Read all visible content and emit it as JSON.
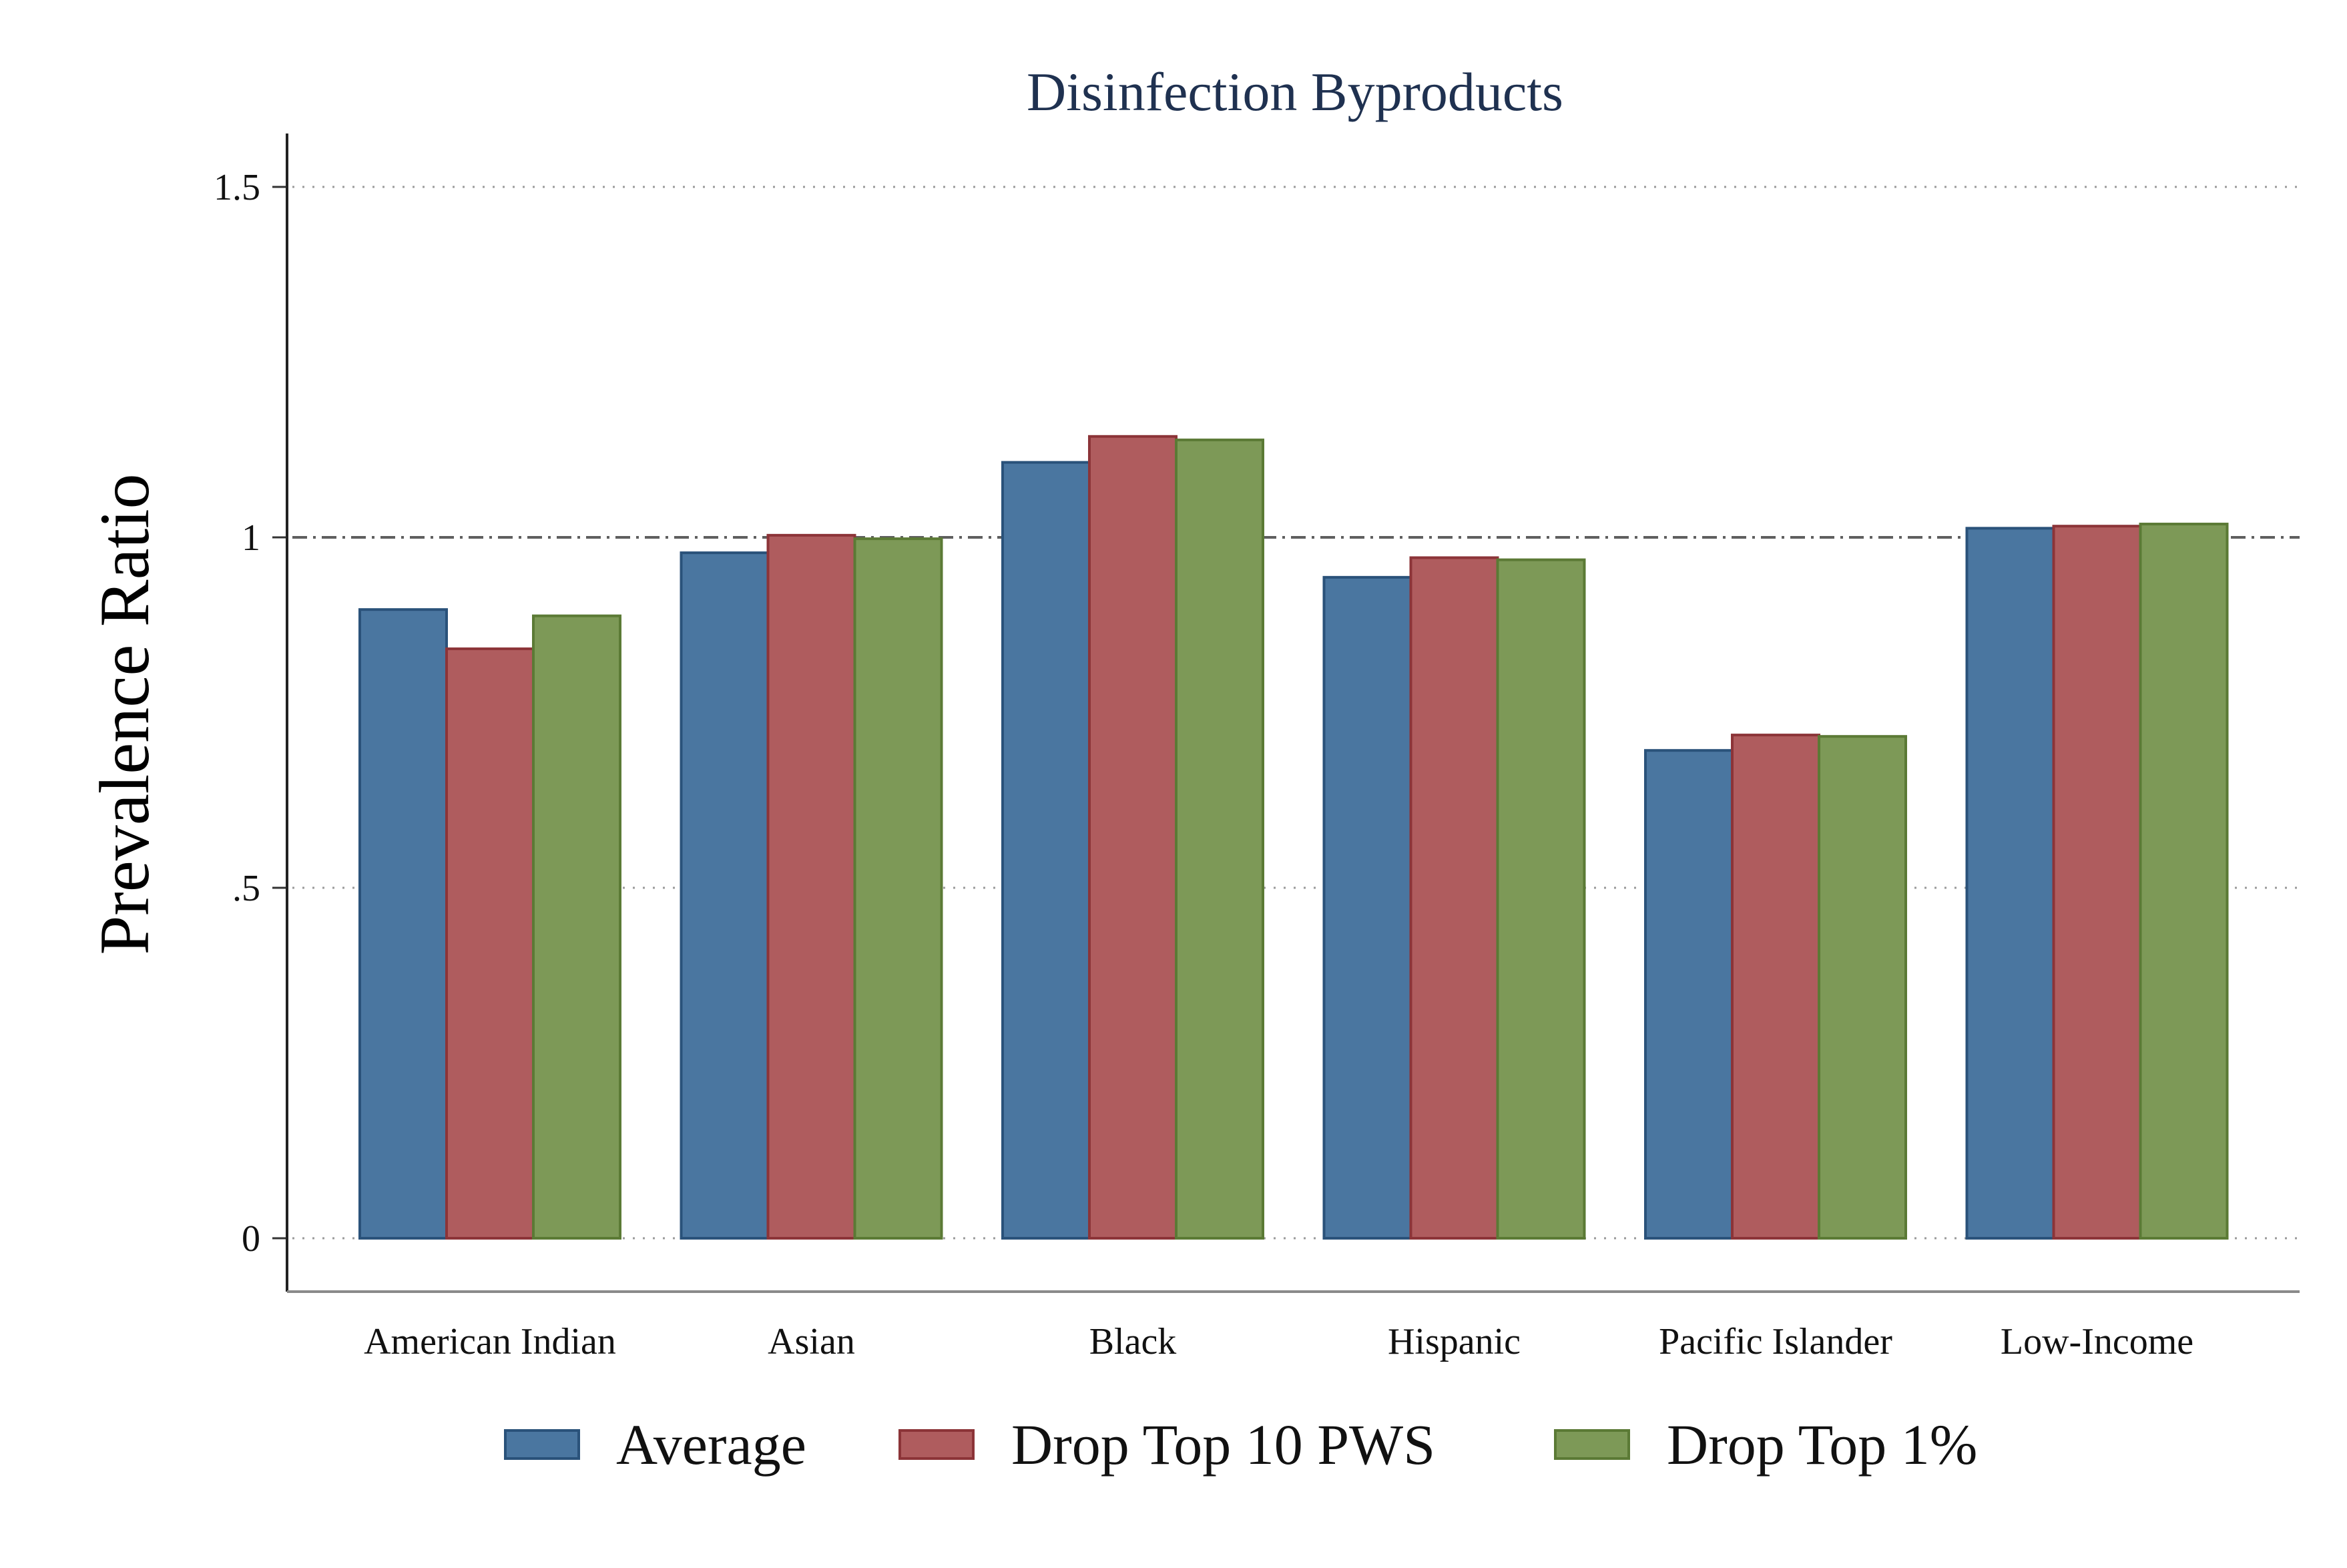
{
  "chart_data": {
    "type": "bar",
    "title": "Disinfection Byproducts",
    "ylabel": "Prevalence Ratio",
    "xlabel": "",
    "categories": [
      "American Indian",
      "Asian",
      "Black",
      "Hispanic",
      "Pacific Islander",
      "Low-Income"
    ],
    "series": [
      {
        "name": "Average",
        "color": "#4a76a0",
        "edge": "#2a527a",
        "values": [
          0.897,
          0.978,
          1.107,
          0.943,
          0.696,
          1.013
        ]
      },
      {
        "name": "Drop Top 10 PWS",
        "color": "#af5c5e",
        "edge": "#8c3438",
        "values": [
          0.841,
          1.003,
          1.144,
          0.971,
          0.718,
          1.016
        ]
      },
      {
        "name": "Drop Top 1%",
        "color": "#7d9957",
        "edge": "#5b7a35",
        "values": [
          0.888,
          0.998,
          1.139,
          0.968,
          0.716,
          1.019
        ]
      }
    ],
    "yticks": [
      {
        "value": 0,
        "label": "0"
      },
      {
        "value": 0.5,
        "label": ".5"
      },
      {
        "value": 1,
        "label": "1"
      },
      {
        "value": 1.5,
        "label": "1.5"
      }
    ],
    "ylim": [
      -0.077,
      1.577
    ],
    "reference_line": 1,
    "grid": "horizontal-dotted",
    "legend_position": "bottom"
  }
}
